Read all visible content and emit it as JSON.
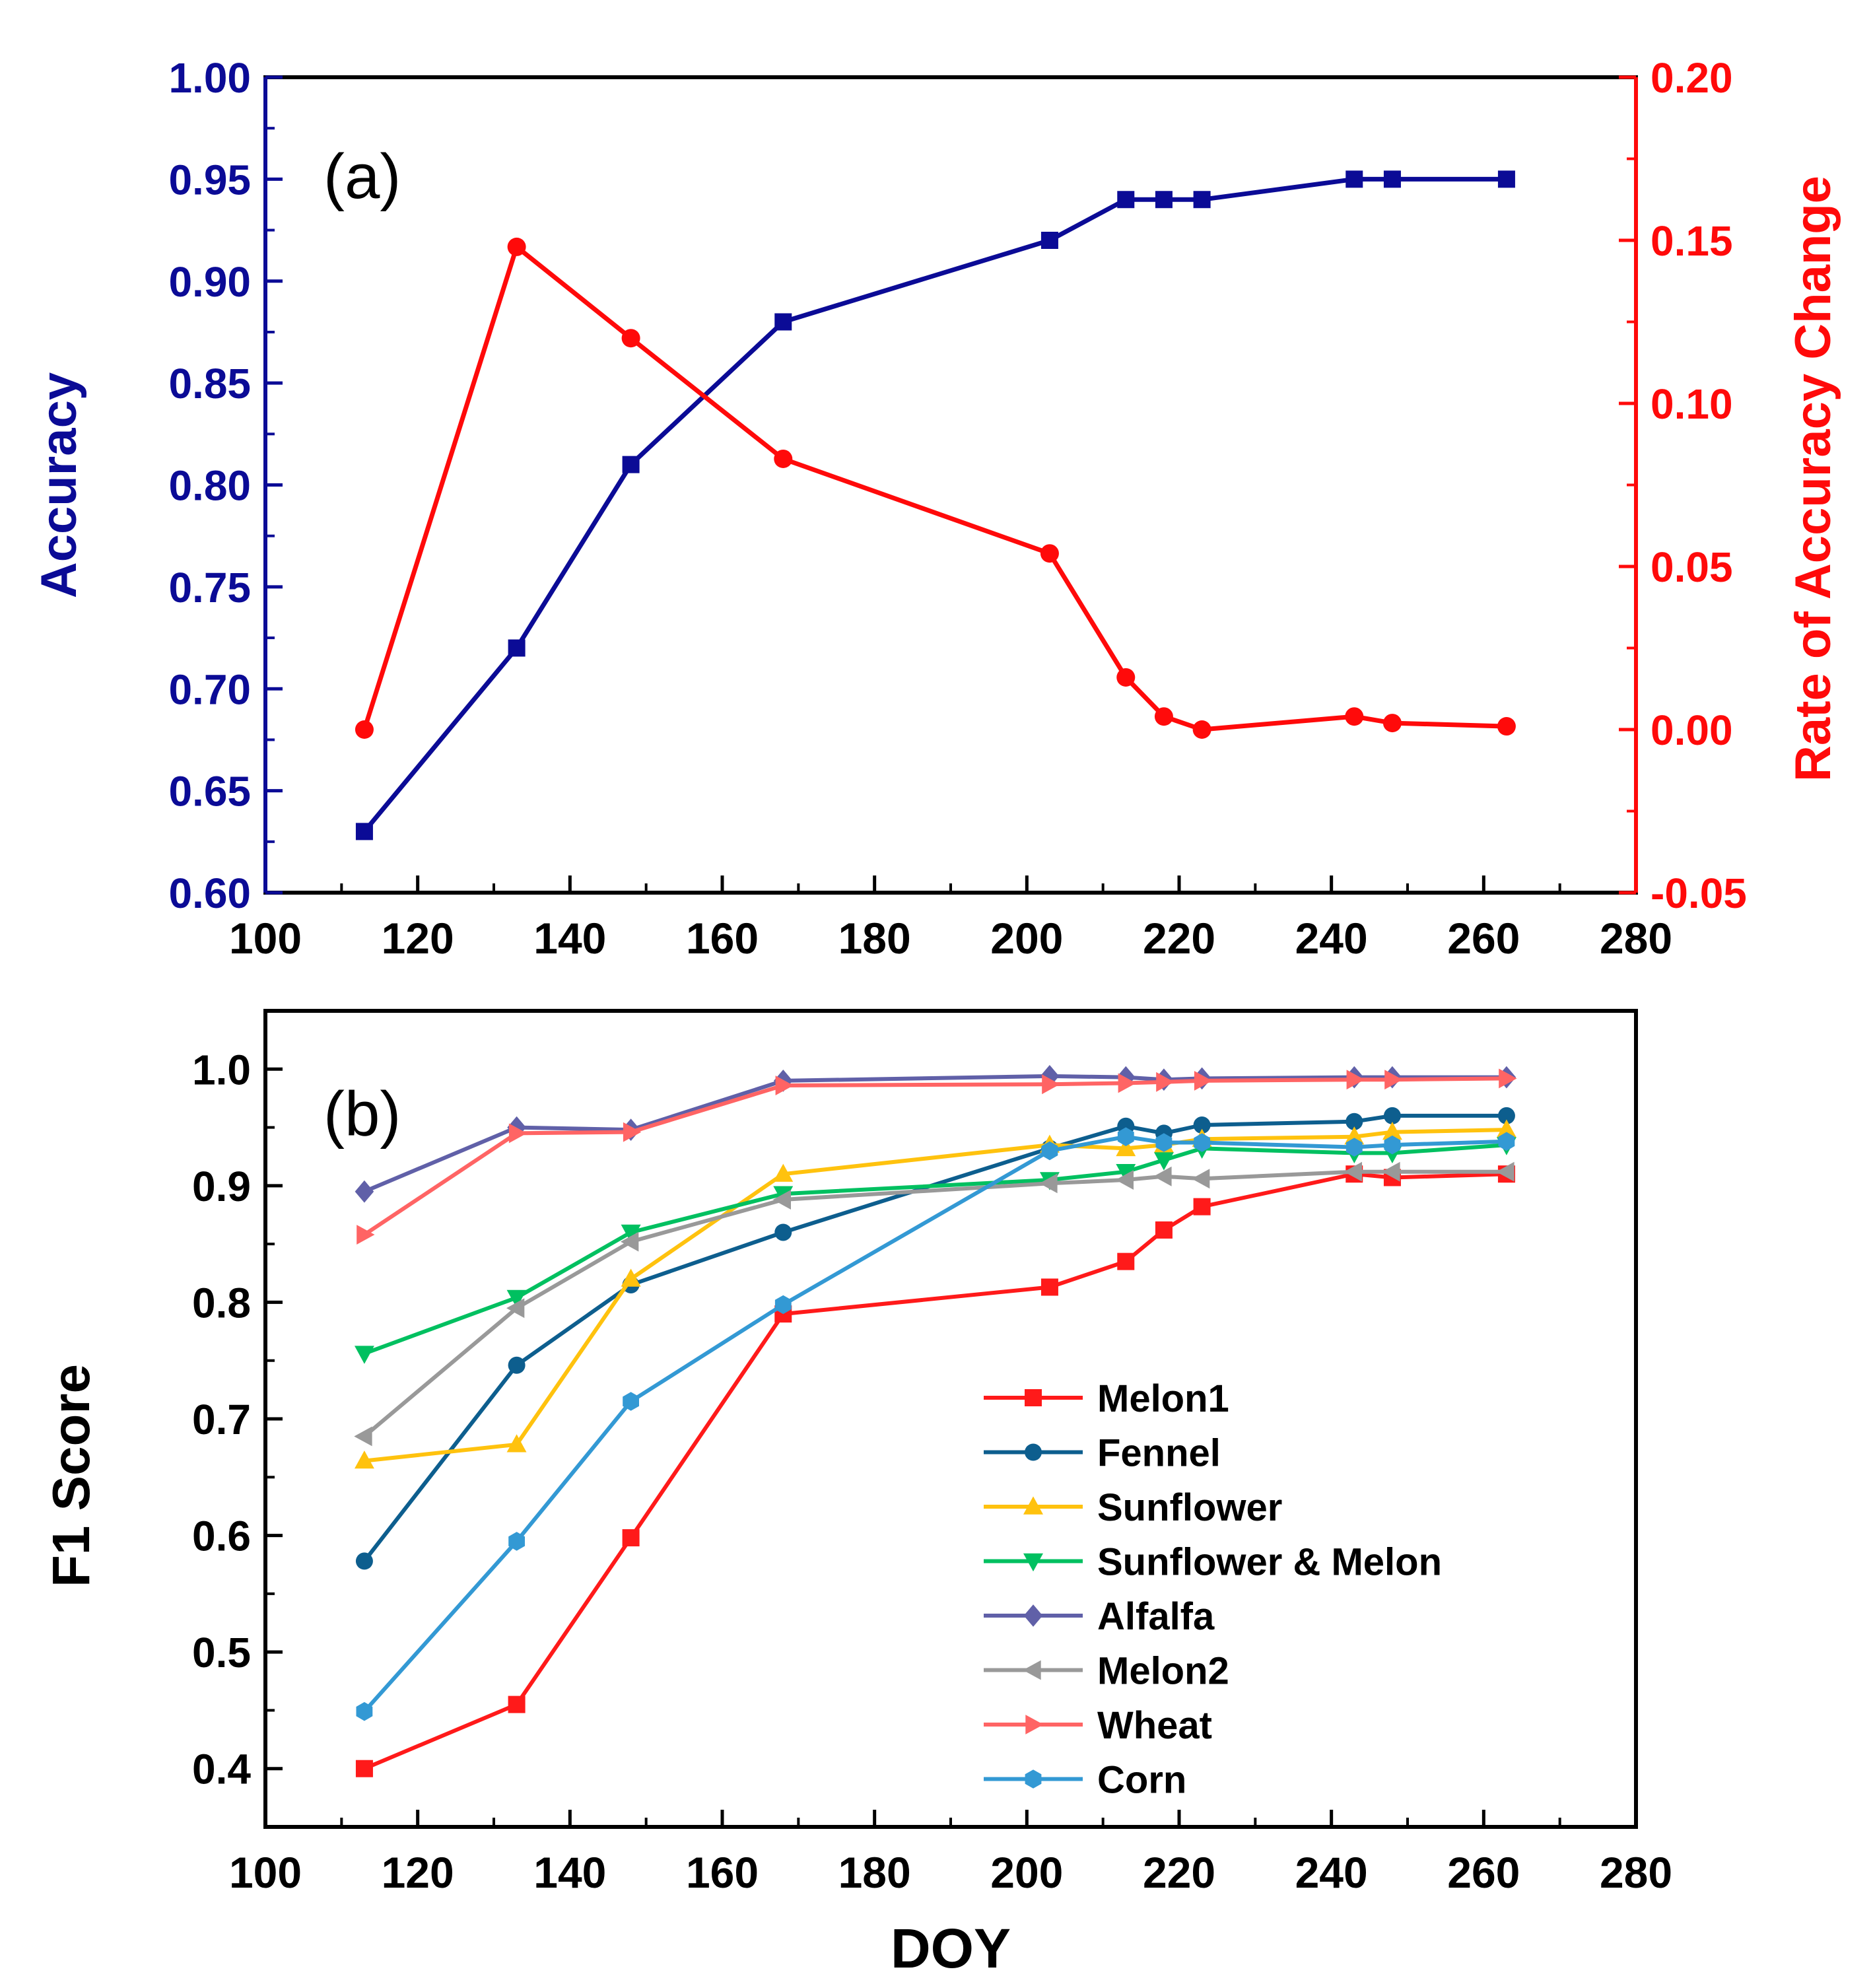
{
  "colors": {
    "accuracy": "#0b0b96",
    "rate": "#ff0a0a",
    "axis": "#000000"
  },
  "chart_data": [
    {
      "type": "line",
      "panel_label": "(a)",
      "xlabel": "",
      "ylabel": "Accuracy",
      "y2label": "Rate of Accuracy Change",
      "xlim": [
        100,
        280
      ],
      "ylim": [
        0.6,
        1.0
      ],
      "y2lim": [
        -0.05,
        0.2
      ],
      "x_ticks": [
        "100",
        "120",
        "140",
        "160",
        "180",
        "200",
        "220",
        "240",
        "260",
        "280"
      ],
      "y_ticks": [
        "0.60",
        "0.65",
        "0.70",
        "0.75",
        "0.80",
        "0.85",
        "0.90",
        "0.95",
        "1.00"
      ],
      "y2_ticks": [
        "-0.05",
        "0.00",
        "0.05",
        "0.10",
        "0.15",
        "0.20"
      ],
      "x": [
        113,
        133,
        148,
        168,
        203,
        213,
        218,
        223,
        243,
        248,
        263
      ],
      "series": [
        {
          "name": "Accuracy",
          "axis": "left",
          "marker": "square",
          "color": "#0b0b96",
          "values": [
            0.63,
            0.72,
            0.81,
            0.88,
            0.92,
            0.94,
            0.94,
            0.94,
            0.95,
            0.95,
            0.95
          ]
        },
        {
          "name": "Rate of Accuracy Change",
          "axis": "right",
          "marker": "circle",
          "color": "#ff0a0a",
          "values": [
            0.0,
            0.148,
            0.12,
            0.083,
            0.054,
            0.016,
            0.004,
            0.0,
            0.004,
            0.002,
            0.001
          ]
        }
      ]
    },
    {
      "type": "line",
      "panel_label": "(b)",
      "xlabel": "DOY",
      "ylabel": "F1 Score",
      "xlim": [
        100,
        280
      ],
      "ylim": [
        0.35,
        1.05
      ],
      "x_ticks": [
        "100",
        "120",
        "140",
        "160",
        "180",
        "200",
        "220",
        "240",
        "260",
        "280"
      ],
      "y_ticks": [
        "0.4",
        "0.5",
        "0.6",
        "0.7",
        "0.8",
        "0.9",
        "1.0"
      ],
      "legend_position": "lower-right",
      "x": [
        113,
        133,
        148,
        168,
        203,
        213,
        218,
        223,
        243,
        248,
        263
      ],
      "series": [
        {
          "name": "Melon1",
          "marker": "square",
          "color": "#ff1a1a",
          "values": [
            0.4,
            0.455,
            0.598,
            0.79,
            0.813,
            0.835,
            0.862,
            0.882,
            0.91,
            0.907,
            0.91
          ]
        },
        {
          "name": "Fennel",
          "marker": "circle",
          "color": "#0d5e8e",
          "values": [
            0.578,
            0.746,
            0.815,
            0.86,
            0.932,
            0.951,
            0.945,
            0.952,
            0.955,
            0.96,
            0.96
          ]
        },
        {
          "name": "Sunflower",
          "marker": "triangle-up",
          "color": "#ffc20e",
          "values": [
            0.664,
            0.678,
            0.82,
            0.91,
            0.935,
            0.932,
            0.935,
            0.94,
            0.942,
            0.946,
            0.948
          ]
        },
        {
          "name": "Sunflower & Melon",
          "marker": "triangle-down",
          "color": "#00c060",
          "values": [
            0.756,
            0.804,
            0.86,
            0.893,
            0.905,
            0.912,
            0.922,
            0.932,
            0.928,
            0.928,
            0.935
          ]
        },
        {
          "name": "Alfalfa",
          "marker": "diamond",
          "color": "#6060a8",
          "values": [
            0.895,
            0.95,
            0.948,
            0.99,
            0.994,
            0.993,
            0.991,
            0.992,
            0.993,
            0.993,
            0.993
          ]
        },
        {
          "name": "Melon2",
          "marker": "triangle-left",
          "color": "#999999",
          "values": [
            0.685,
            0.795,
            0.852,
            0.888,
            0.902,
            0.905,
            0.908,
            0.906,
            0.912,
            0.912,
            0.912
          ]
        },
        {
          "name": "Wheat",
          "marker": "triangle-right",
          "color": "#ff6464",
          "values": [
            0.858,
            0.945,
            0.946,
            0.986,
            0.987,
            0.988,
            0.989,
            0.99,
            0.991,
            0.991,
            0.992
          ]
        },
        {
          "name": "Corn",
          "marker": "hexagon",
          "color": "#3399d4",
          "values": [
            0.449,
            0.595,
            0.715,
            0.798,
            0.93,
            0.942,
            0.937,
            0.937,
            0.933,
            0.935,
            0.938
          ]
        }
      ]
    }
  ]
}
